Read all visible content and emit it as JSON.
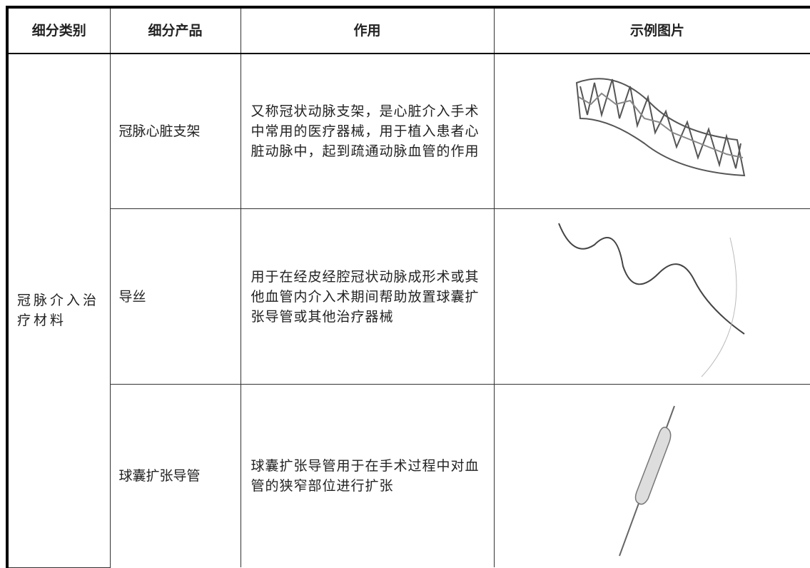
{
  "table": {
    "header": [
      "细分类别",
      "细分产品",
      "作用",
      "示例图片"
    ],
    "category": "冠脉介入治疗材料",
    "rows": [
      [
        "冠脉心脏支架",
        "又称冠状动脉支架，是心脏介入手术中常用的医疗器械，用于植入患者心脏动脉中，起到疏通动脉血管的作用"
      ],
      [
        "导丝",
        "用于在经皮经腔冠状动脉成形术或其他血管内介入术期间帮助放置球囊扩张导管或其他治疗器械"
      ],
      [
        "球囊扩张导管",
        "球囊扩张导管用于在手术过程中对血管的狭窄部位进行扩张"
      ]
    ]
  }
}
